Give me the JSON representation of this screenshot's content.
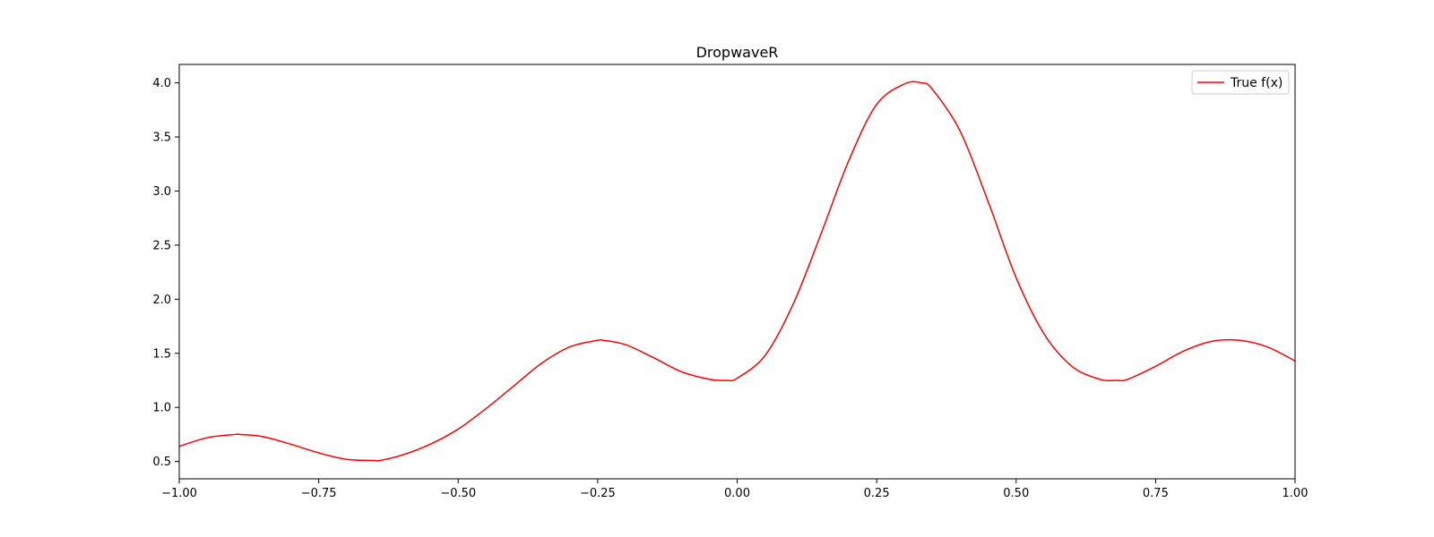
{
  "chart_data": {
    "type": "line",
    "title": "DropwaveR",
    "xlabel": "",
    "ylabel": "",
    "xlim": [
      -1.0,
      1.0
    ],
    "ylim": [
      0.34,
      4.17
    ],
    "x_ticks": [
      -1.0,
      -0.75,
      -0.5,
      -0.25,
      0.0,
      0.25,
      0.5,
      0.75,
      1.0
    ],
    "x_tick_labels": [
      "−1.00",
      "−0.75",
      "−0.50",
      "−0.25",
      "0.00",
      "0.25",
      "0.50",
      "0.75",
      "1.00"
    ],
    "y_ticks": [
      0.5,
      1.0,
      1.5,
      2.0,
      2.5,
      3.0,
      3.5,
      4.0
    ],
    "y_tick_labels": [
      "0.5",
      "1.0",
      "1.5",
      "2.0",
      "2.5",
      "3.0",
      "3.5",
      "4.0"
    ],
    "grid": false,
    "legend_position": "top-right",
    "series": [
      {
        "name": "True f(x)",
        "color": "#ff0000",
        "x": [
          -1.0,
          -0.95,
          -0.9,
          -0.89,
          -0.85,
          -0.8,
          -0.75,
          -0.7,
          -0.65,
          -0.64,
          -0.6,
          -0.55,
          -0.5,
          -0.45,
          -0.4,
          -0.35,
          -0.3,
          -0.25,
          -0.24,
          -0.2,
          -0.15,
          -0.1,
          -0.05,
          -0.02,
          0.0,
          0.05,
          0.1,
          0.15,
          0.2,
          0.25,
          0.3,
          0.33,
          0.35,
          0.4,
          0.45,
          0.5,
          0.55,
          0.6,
          0.65,
          0.68,
          0.7,
          0.75,
          0.8,
          0.85,
          0.9,
          0.95,
          1.0
        ],
        "y": [
          0.64,
          0.72,
          0.75,
          0.75,
          0.73,
          0.66,
          0.58,
          0.52,
          0.51,
          0.51,
          0.56,
          0.66,
          0.8,
          0.99,
          1.2,
          1.41,
          1.56,
          1.62,
          1.62,
          1.58,
          1.46,
          1.33,
          1.26,
          1.25,
          1.27,
          1.48,
          1.95,
          2.6,
          3.28,
          3.8,
          3.99,
          4.0,
          3.94,
          3.55,
          2.9,
          2.2,
          1.68,
          1.38,
          1.26,
          1.25,
          1.26,
          1.38,
          1.52,
          1.61,
          1.62,
          1.56,
          1.43
        ]
      }
    ]
  }
}
